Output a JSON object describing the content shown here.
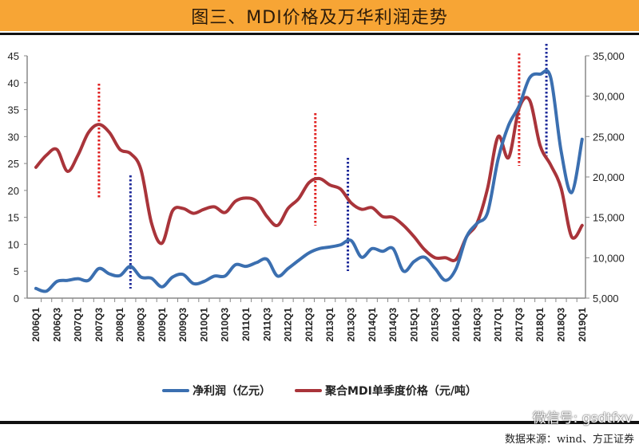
{
  "title": "图三、MDI价格及万华利润走势",
  "legend": [
    {
      "label": "净利润（亿元）",
      "color": "#3B6FB0"
    },
    {
      "label": "聚合MDI单季度价格（元/吨）",
      "color": "#A9343A"
    }
  ],
  "watermark": "微信号: gsdtfxv",
  "source": "数据来源：wind、方正证券",
  "chart_data": {
    "type": "line",
    "x": [
      "2006Q1",
      "2006Q2",
      "2006Q3",
      "2006Q4",
      "2007Q1",
      "2007Q2",
      "2007Q3",
      "2007Q4",
      "2008Q1",
      "2008Q2",
      "2008Q3",
      "2008Q4",
      "2009Q1",
      "2009Q2",
      "2009Q3",
      "2009Q4",
      "2010Q1",
      "2010Q2",
      "2010Q3",
      "2010Q4",
      "2011Q1",
      "2011Q2",
      "2011Q3",
      "2011Q4",
      "2012Q1",
      "2012Q2",
      "2012Q3",
      "2012Q4",
      "2013Q1",
      "2013Q2",
      "2013Q3",
      "2013Q4",
      "2014Q1",
      "2014Q2",
      "2014Q3",
      "2014Q4",
      "2015Q1",
      "2015Q2",
      "2015Q3",
      "2015Q4",
      "2016Q1",
      "2016Q2",
      "2016Q3",
      "2016Q4",
      "2017Q1",
      "2017Q2",
      "2017Q3",
      "2017Q4",
      "2018Q1",
      "2018Q2",
      "2018Q3",
      "2018Q4",
      "2019Q1"
    ],
    "x_tick_labels": [
      "2006Q1",
      "2006Q3",
      "2007Q1",
      "2007Q3",
      "2008Q1",
      "2008Q3",
      "2009Q1",
      "2009Q3",
      "2010Q1",
      "2010Q3",
      "2011Q1",
      "2011Q3",
      "2012Q1",
      "2012Q3",
      "2013Q1",
      "2013Q3",
      "2014Q1",
      "2014Q3",
      "2015Q1",
      "2015Q3",
      "2016Q1",
      "2016Q3",
      "2017Q1",
      "2017Q3",
      "2018Q1",
      "2018Q3",
      "2019Q1"
    ],
    "y_left": {
      "range": [
        0,
        45
      ],
      "ticks": [
        "0",
        "5",
        "10",
        "15",
        "20",
        "25",
        "30",
        "35",
        "40",
        "45"
      ]
    },
    "y_right": {
      "range": [
        5000,
        35000
      ],
      "ticks": [
        "5,000",
        "10,000",
        "15,000",
        "20,000",
        "25,000",
        "30,000",
        "35,000"
      ]
    },
    "grid": false,
    "legend_position": "bottom",
    "series": [
      {
        "name": "净利润（亿元）",
        "axis": "left",
        "color": "#3B6FB0",
        "values": [
          1.8,
          1.3,
          3.1,
          3.3,
          3.6,
          3.3,
          5.5,
          4.5,
          4.2,
          5.9,
          3.9,
          3.7,
          2.1,
          3.9,
          4.4,
          2.7,
          3.1,
          4.1,
          4.1,
          6.2,
          5.9,
          6.6,
          7.2,
          4.1,
          5.5,
          7.0,
          8.4,
          9.2,
          9.5,
          9.9,
          10.7,
          7.6,
          9.2,
          8.7,
          9.2,
          5.0,
          6.8,
          7.6,
          5.5,
          3.3,
          5.5,
          11.4,
          13.9,
          15.9,
          25.8,
          32.1,
          35.7,
          40.9,
          41.6,
          41.0,
          27.3,
          19.6,
          29.5
        ]
      },
      {
        "name": "聚合MDI单季度价格（元/吨）",
        "axis": "right",
        "color": "#A9343A",
        "values": [
          21200,
          22700,
          23400,
          20700,
          22700,
          25500,
          26500,
          25500,
          23400,
          22900,
          20900,
          14300,
          11800,
          15800,
          16100,
          15500,
          16000,
          16300,
          15600,
          17000,
          17400,
          17000,
          15100,
          14000,
          16100,
          17300,
          19300,
          19800,
          19000,
          18500,
          16800,
          16000,
          16200,
          15100,
          15000,
          14000,
          12600,
          11000,
          10000,
          10000,
          9800,
          12600,
          14300,
          18600,
          25000,
          22400,
          28500,
          29500,
          23900,
          21500,
          18600,
          12600,
          14000
        ]
      }
    ]
  }
}
